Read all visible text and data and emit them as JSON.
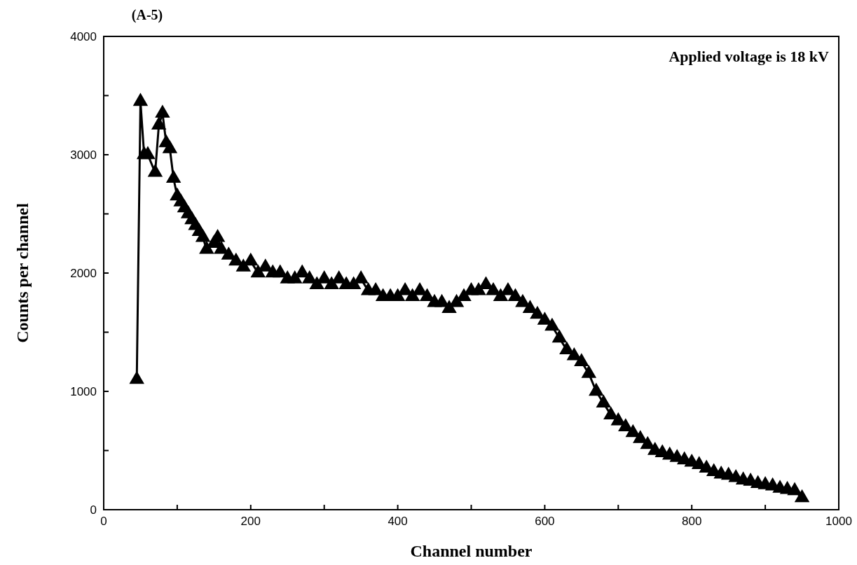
{
  "chart_data": {
    "type": "line",
    "title": "(A-5)",
    "xlabel": "Channel number",
    "ylabel": "Counts per channel",
    "annotations": [
      "Applied voltage is 18 kV"
    ],
    "x": [
      45,
      50,
      55,
      60,
      70,
      75,
      80,
      85,
      90,
      95,
      100,
      105,
      110,
      115,
      120,
      125,
      130,
      135,
      140,
      150,
      155,
      160,
      170,
      180,
      190,
      200,
      210,
      220,
      230,
      240,
      250,
      260,
      270,
      280,
      290,
      300,
      310,
      320,
      330,
      340,
      350,
      360,
      370,
      380,
      390,
      400,
      410,
      420,
      430,
      440,
      450,
      460,
      470,
      480,
      490,
      500,
      510,
      520,
      530,
      540,
      550,
      560,
      570,
      580,
      590,
      600,
      610,
      620,
      630,
      640,
      650,
      660,
      670,
      680,
      690,
      700,
      710,
      720,
      730,
      740,
      750,
      760,
      770,
      780,
      790,
      800,
      810,
      820,
      830,
      840,
      850,
      860,
      870,
      880,
      890,
      900,
      910,
      920,
      930,
      940,
      950
    ],
    "series": [
      {
        "color": "#000000",
        "values": [
          1100,
          3450,
          3000,
          3000,
          2850,
          3250,
          3350,
          3100,
          3050,
          2800,
          2650,
          2600,
          2550,
          2500,
          2450,
          2400,
          2350,
          2300,
          2200,
          2250,
          2300,
          2200,
          2150,
          2100,
          2050,
          2100,
          2000,
          2050,
          2000,
          2000,
          1950,
          1950,
          2000,
          1950,
          1900,
          1950,
          1900,
          1950,
          1900,
          1900,
          1950,
          1850,
          1850,
          1800,
          1800,
          1800,
          1850,
          1800,
          1850,
          1800,
          1750,
          1750,
          1700,
          1750,
          1800,
          1850,
          1850,
          1900,
          1850,
          1800,
          1850,
          1800,
          1750,
          1700,
          1650,
          1600,
          1550,
          1450,
          1350,
          1300,
          1250,
          1150,
          1000,
          900,
          800,
          750,
          700,
          650,
          600,
          550,
          500,
          480,
          460,
          440,
          420,
          400,
          380,
          350,
          320,
          300,
          290,
          270,
          250,
          240,
          220,
          210,
          200,
          180,
          170,
          160,
          100
        ]
      }
    ],
    "xlim": [
      0,
      1000
    ],
    "xticks": [
      0,
      {
        "value": 100,
        "label": null
      },
      200,
      {
        "value": 300,
        "label": null
      },
      400,
      {
        "value": 500,
        "label": null
      },
      600,
      {
        "value": 700,
        "label": null
      },
      800,
      {
        "value": 900,
        "label": null
      },
      1000
    ],
    "ylim": [
      0,
      4000
    ],
    "yticks": [
      0,
      {
        "value": 500,
        "label": null
      },
      1000,
      {
        "value": 1500,
        "label": null
      },
      2000,
      {
        "value": 2500,
        "label": null
      },
      3000,
      {
        "value": 3500,
        "label": null
      },
      4000
    ],
    "grid": false,
    "marker": "triangle",
    "line_style": "solid"
  }
}
